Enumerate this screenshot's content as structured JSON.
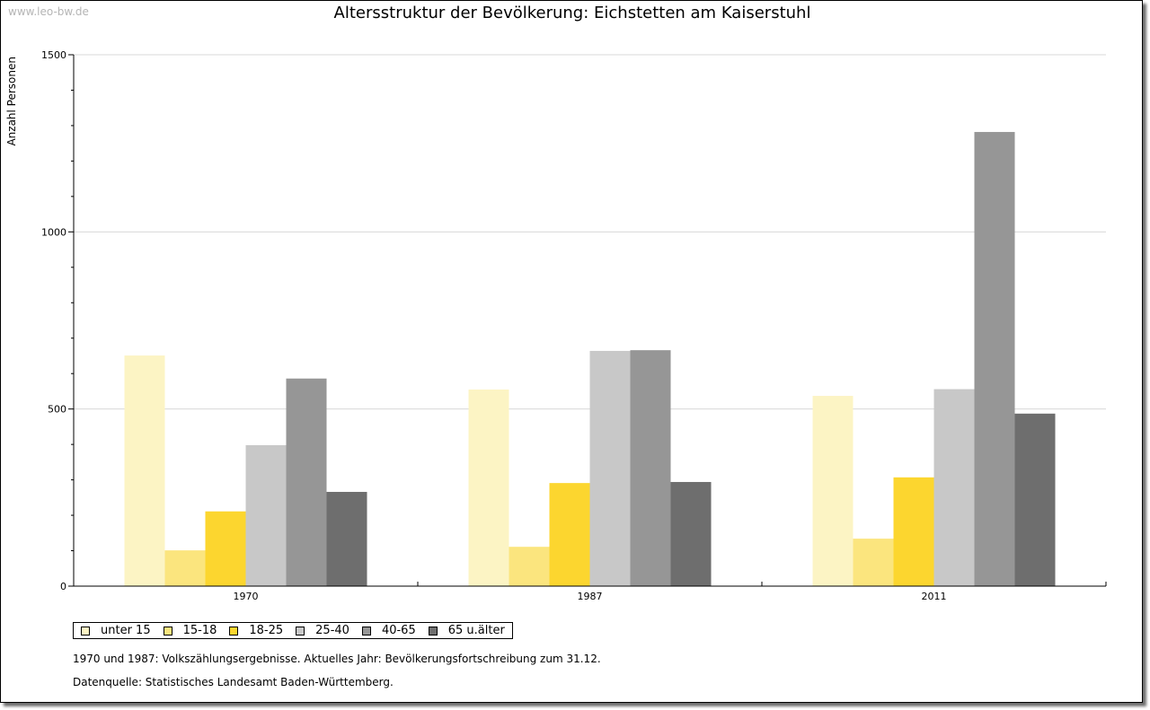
{
  "watermark": "www.leo-bw.de",
  "chart_data": {
    "type": "bar",
    "title": "Altersstruktur der Bevölkerung: Eichstetten am Kaiserstuhl",
    "xlabel": "",
    "ylabel": "Anzahl Personen",
    "ylim": [
      0,
      1500
    ],
    "yticks": [
      0,
      500,
      1000,
      1500
    ],
    "categories": [
      "1970",
      "1987",
      "2011"
    ],
    "series": [
      {
        "name": "unter 15",
        "color": "#fcf4c4",
        "values": [
          651,
          555,
          537
        ]
      },
      {
        "name": "15-18",
        "color": "#fbe57e",
        "values": [
          101,
          111,
          134
        ]
      },
      {
        "name": "18-25",
        "color": "#fcd62f",
        "values": [
          211,
          291,
          307
        ]
      },
      {
        "name": "25-40",
        "color": "#c8c8c8",
        "values": [
          398,
          664,
          556
        ]
      },
      {
        "name": "40-65",
        "color": "#969696",
        "values": [
          586,
          666,
          1282
        ]
      },
      {
        "name": "65 u.älter",
        "color": "#6e6e6e",
        "values": [
          266,
          294,
          487
        ]
      }
    ],
    "grid": true,
    "legend": "bottom-left"
  },
  "notes": {
    "line1": "1970 und 1987: Volkszählungsergebnisse. Aktuelles Jahr: Bevölkerungsfortschreibung zum 31.12.",
    "line2": "Datenquelle: Statistisches Landesamt Baden-Württemberg."
  }
}
